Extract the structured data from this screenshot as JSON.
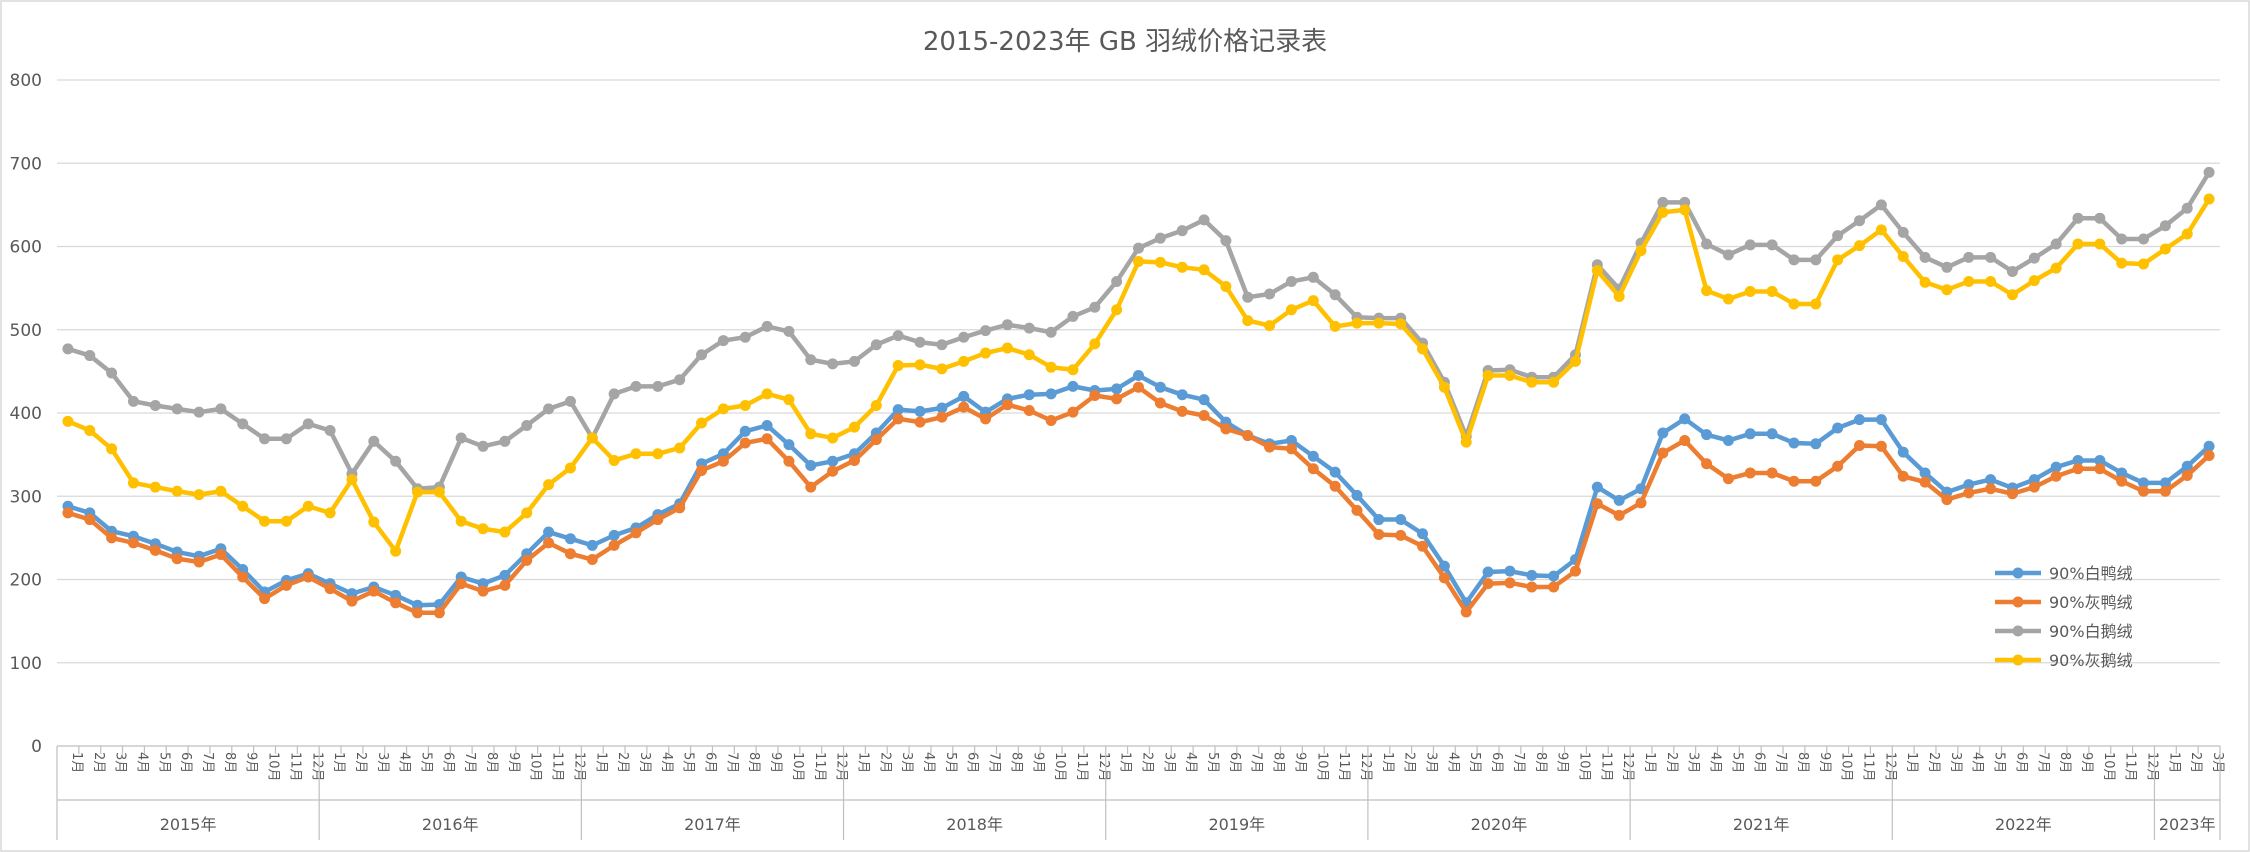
{
  "chart_data": {
    "type": "line",
    "title": "2015-2023年 GB 羽绒价格记录表",
    "xlabel": "",
    "ylabel": "",
    "ylim": [
      0,
      800
    ],
    "yticks": [
      0,
      100,
      200,
      300,
      400,
      500,
      600,
      700,
      800
    ],
    "grid": true,
    "legend_position": "right",
    "month_labels": [
      "1月",
      "2月",
      "3月",
      "4月",
      "5月",
      "6月",
      "7月",
      "8月",
      "9月",
      "10月",
      "11月",
      "12月"
    ],
    "year_groups": [
      {
        "label": "2015年",
        "months": 12
      },
      {
        "label": "2016年",
        "months": 12
      },
      {
        "label": "2017年",
        "months": 12
      },
      {
        "label": "2018年",
        "months": 12
      },
      {
        "label": "2019年",
        "months": 12
      },
      {
        "label": "2020年",
        "months": 12
      },
      {
        "label": "2021年",
        "months": 12
      },
      {
        "label": "2022年",
        "months": 12
      },
      {
        "label": "2023年",
        "months": 3
      }
    ],
    "series": [
      {
        "name": "90%白鸭绒",
        "color": "#5b9bd5",
        "values": [
          288,
          280,
          258,
          252,
          243,
          233,
          228,
          237,
          212,
          185,
          199,
          207,
          195,
          183,
          191,
          181,
          169,
          170,
          203,
          195,
          205,
          231,
          257,
          249,
          241,
          253,
          262,
          278,
          291,
          339,
          351,
          378,
          385,
          362,
          337,
          342,
          351,
          376,
          404,
          402,
          406,
          420,
          401,
          417,
          422,
          423,
          432,
          427,
          429,
          445,
          431,
          422,
          416,
          389,
          373,
          363,
          367,
          348,
          329,
          301,
          272,
          272,
          255,
          216,
          172,
          209,
          210,
          205,
          204,
          224,
          311,
          295,
          309,
          376,
          393,
          374,
          367,
          375,
          375,
          364,
          363,
          382,
          392,
          392,
          353,
          328,
          305,
          314,
          320,
          310,
          320,
          335,
          343,
          343,
          328,
          316,
          316,
          336,
          360
        ]
      },
      {
        "name": "90%灰鸭绒",
        "color": "#ed7d31",
        "values": [
          280,
          272,
          250,
          244,
          235,
          225,
          221,
          230,
          203,
          177,
          193,
          203,
          189,
          174,
          186,
          172,
          160,
          160,
          195,
          186,
          193,
          223,
          244,
          231,
          224,
          241,
          256,
          272,
          286,
          331,
          342,
          364,
          369,
          342,
          311,
          330,
          343,
          368,
          393,
          389,
          395,
          407,
          393,
          410,
          403,
          391,
          401,
          421,
          417,
          431,
          412,
          402,
          397,
          381,
          373,
          359,
          357,
          333,
          312,
          283,
          254,
          253,
          240,
          202,
          161,
          195,
          196,
          191,
          191,
          210,
          291,
          277,
          292,
          352,
          367,
          339,
          321,
          328,
          328,
          318,
          318,
          336,
          361,
          360,
          324,
          317,
          296,
          304,
          309,
          303,
          311,
          324,
          333,
          333,
          318,
          306,
          306,
          325,
          349
        ]
      },
      {
        "name": "90%白鹅绒",
        "color": "#a5a5a5",
        "values": [
          477,
          469,
          448,
          414,
          409,
          405,
          401,
          405,
          387,
          369,
          369,
          387,
          379,
          327,
          366,
          342,
          309,
          311,
          370,
          360,
          366,
          385,
          405,
          414,
          370,
          423,
          432,
          432,
          440,
          470,
          487,
          491,
          504,
          498,
          464,
          459,
          462,
          482,
          493,
          485,
          482,
          491,
          499,
          506,
          502,
          497,
          516,
          527,
          558,
          598,
          610,
          619,
          632,
          607,
          539,
          543,
          558,
          563,
          542,
          515,
          514,
          514,
          484,
          437,
          372,
          451,
          452,
          443,
          443,
          470,
          578,
          549,
          604,
          653,
          653,
          603,
          590,
          602,
          602,
          584,
          584,
          613,
          631,
          650,
          617,
          587,
          575,
          587,
          587,
          570,
          586,
          603,
          634,
          634,
          609,
          609,
          625,
          646,
          689
        ]
      },
      {
        "name": "90%灰鹅绒",
        "color": "#ffc000",
        "values": [
          390,
          379,
          357,
          316,
          311,
          306,
          302,
          306,
          288,
          270,
          270,
          288,
          280,
          320,
          269,
          234,
          305,
          305,
          270,
          261,
          257,
          280,
          314,
          334,
          370,
          343,
          351,
          351,
          358,
          388,
          405,
          409,
          423,
          416,
          375,
          370,
          383,
          409,
          457,
          458,
          453,
          462,
          472,
          478,
          470,
          455,
          452,
          483,
          524,
          582,
          581,
          575,
          572,
          552,
          511,
          505,
          524,
          535,
          504,
          508,
          508,
          507,
          477,
          431,
          365,
          445,
          445,
          437,
          437,
          462,
          571,
          540,
          595,
          641,
          644,
          547,
          537,
          546,
          546,
          531,
          531,
          584,
          601,
          620,
          588,
          557,
          548,
          558,
          558,
          542,
          559,
          574,
          603,
          603,
          580,
          579,
          597,
          615,
          657
        ]
      }
    ]
  }
}
